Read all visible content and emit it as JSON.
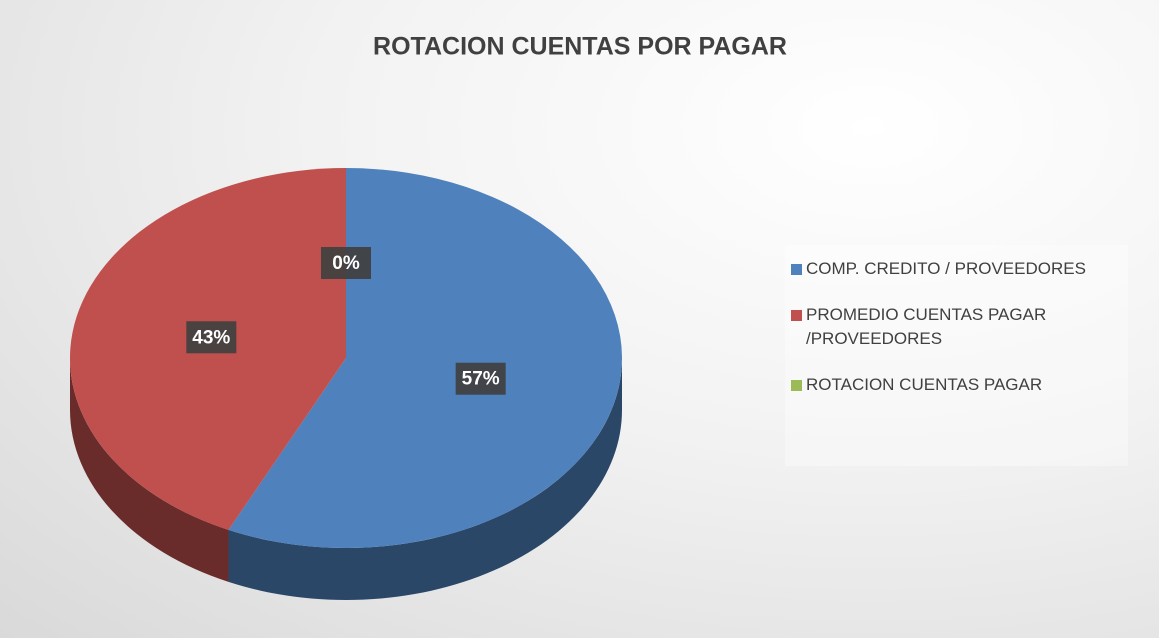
{
  "chart_data": {
    "type": "pie",
    "title": "ROTACION CUENTAS POR PAGAR",
    "categories": [
      "COMP. CREDITO / PROVEEDORES",
      "PROMEDIO CUENTAS PAGAR /PROVEEDORES",
      "ROTACION CUENTAS  PAGAR"
    ],
    "values": [
      57,
      43,
      0
    ],
    "value_labels": [
      "57%",
      "43%",
      "0%"
    ],
    "colors": [
      "#4f81bd",
      "#c0504d",
      "#9bbb59"
    ],
    "legend": "right"
  }
}
